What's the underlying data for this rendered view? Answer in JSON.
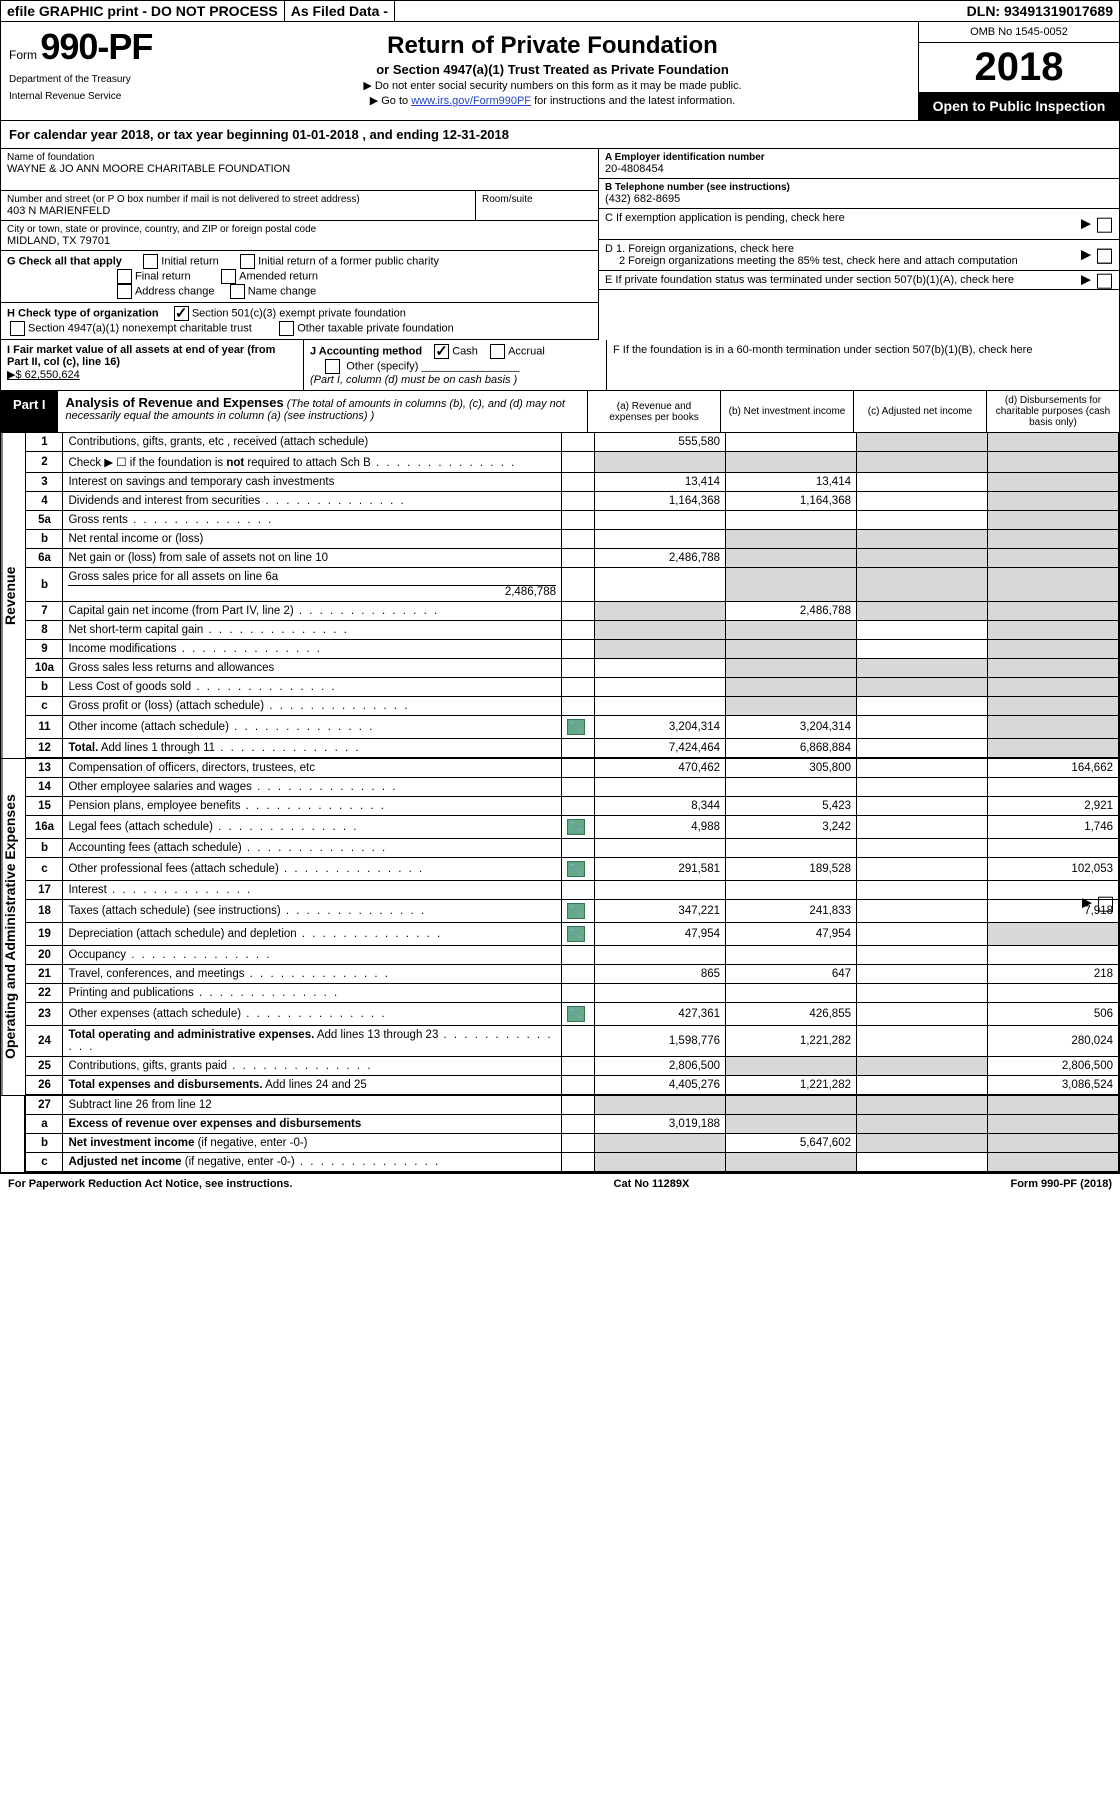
{
  "topbar": {
    "efile": "efile GRAPHIC print - DO NOT PROCESS",
    "asfiled": "As Filed Data -",
    "dln_label": "DLN:",
    "dln": "93491319017689"
  },
  "header": {
    "form_prefix": "Form",
    "form_num": "990-PF",
    "dept1": "Department of the Treasury",
    "dept2": "Internal Revenue Service",
    "title": "Return of Private Foundation",
    "subtitle": "or Section 4947(a)(1) Trust Treated as Private Foundation",
    "note1": "▶ Do not enter social security numbers on this form as it may be made public.",
    "note2_pre": "▶ Go to ",
    "note2_link": "www.irs.gov/Form990PF",
    "note2_post": " for instructions and the latest information.",
    "omb": "OMB No  1545-0052",
    "year": "2018",
    "open": "Open to Public Inspection"
  },
  "calyear": "For calendar year 2018, or tax year beginning 01-01-2018             , and ending 12-31-2018",
  "name_block": {
    "lab": "Name of foundation",
    "val": "WAYNE & JO ANN MOORE CHARITABLE FOUNDATION"
  },
  "addr_block": {
    "lab": "Number and street (or P O  box number if mail is not delivered to street address)",
    "val": "403 N MARIENFELD",
    "room_lab": "Room/suite"
  },
  "city_block": {
    "lab": "City or town, state or province, country, and ZIP or foreign postal code",
    "val": "MIDLAND, TX  79701"
  },
  "A": {
    "lab": "A Employer identification number",
    "val": "20-4808454"
  },
  "B": {
    "lab": "B Telephone number (see instructions)",
    "val": "(432) 682-8695"
  },
  "C": "C  If exemption application is pending, check here",
  "D1": "D 1. Foreign organizations, check here",
  "D2": "2  Foreign organizations meeting the 85% test, check here and attach computation",
  "E": "E  If private foundation status was terminated under section 507(b)(1)(A), check here",
  "F": "F  If the foundation is in a 60-month termination under section 507(b)(1)(B), check here",
  "G": {
    "lab": "G Check all that apply",
    "opts": [
      "Initial return",
      "Initial return of a former public charity",
      "Final return",
      "Amended return",
      "Address change",
      "Name change"
    ]
  },
  "H": {
    "lab": "H Check type of organization",
    "opt1": "Section 501(c)(3) exempt private foundation",
    "opt2": "Section 4947(a)(1) nonexempt charitable trust",
    "opt3": "Other taxable private foundation"
  },
  "I": {
    "lab": "I Fair market value of all assets at end of year (from Part II, col  (c), line 16)",
    "val": "▶$  62,550,624"
  },
  "J": {
    "lab": "J Accounting method",
    "cash": "Cash",
    "accrual": "Accrual",
    "other": "Other (specify)",
    "note": "(Part I, column (d) must be on cash basis )"
  },
  "part1": {
    "tag": "Part I",
    "title": "Analysis of Revenue and Expenses",
    "sub": "(The total of amounts in columns (b), (c), and (d) may not necessarily equal the amounts in column (a) (see instructions) )",
    "cols": {
      "a": "(a)   Revenue and expenses per books",
      "b": "(b)   Net investment income",
      "c": "(c)   Adjusted net income",
      "d": "(d)   Disbursements for charitable purposes (cash basis only)"
    }
  },
  "sidelabels": {
    "rev": "Revenue",
    "exp": "Operating and Administrative Expenses"
  },
  "rows": [
    {
      "n": "1",
      "lab": "Contributions, gifts, grants, etc , received (attach schedule)",
      "a": "555,580",
      "b": "",
      "c": "",
      "d": "",
      "icon": false,
      "shade_cd": true
    },
    {
      "n": "2",
      "lab": "Check ▶ ☐ if the foundation is <b>not</b> required to attach Sch  B",
      "a": "",
      "b": "",
      "c": "",
      "d": "",
      "shade_all": true,
      "dot": true
    },
    {
      "n": "3",
      "lab": "Interest on savings and temporary cash investments",
      "a": "13,414",
      "b": "13,414",
      "c": "",
      "d": "",
      "shade_d": true
    },
    {
      "n": "4",
      "lab": "Dividends and interest from securities",
      "a": "1,164,368",
      "b": "1,164,368",
      "c": "",
      "d": "",
      "dot": true,
      "shade_d": true
    },
    {
      "n": "5a",
      "lab": "Gross rents",
      "a": "",
      "b": "",
      "c": "",
      "d": "",
      "dot": true,
      "shade_d": true
    },
    {
      "n": "b",
      "lab": "Net rental income or (loss)",
      "a": "",
      "b": "",
      "c": "",
      "d": "",
      "shade_bcd": true,
      "under": true
    },
    {
      "n": "6a",
      "lab": "Net gain or (loss) from sale of assets not on line 10",
      "a": "2,486,788",
      "b": "",
      "c": "",
      "d": "",
      "shade_bcd": true
    },
    {
      "n": "b",
      "lab": "Gross sales price for all assets on line 6a",
      "a": "",
      "b": "",
      "c": "",
      "d": "",
      "sub": "2,486,788",
      "shade_bcd": true
    },
    {
      "n": "7",
      "lab": "Capital gain net income (from Part IV, line 2)",
      "a": "",
      "b": "2,486,788",
      "c": "",
      "d": "",
      "dot": true,
      "shade_a": true,
      "shade_cd": true
    },
    {
      "n": "8",
      "lab": "Net short-term capital gain",
      "a": "",
      "b": "",
      "c": "",
      "d": "",
      "dot": true,
      "shade_ab": true,
      "shade_d": true
    },
    {
      "n": "9",
      "lab": "Income modifications",
      "a": "",
      "b": "",
      "c": "",
      "d": "",
      "dot": true,
      "shade_ab": true,
      "shade_d": true
    },
    {
      "n": "10a",
      "lab": "Gross sales less returns and allowances",
      "a": "",
      "b": "",
      "c": "",
      "d": "",
      "shade_bcd": true,
      "under": true
    },
    {
      "n": "b",
      "lab": "Less  Cost of goods sold",
      "a": "",
      "b": "",
      "c": "",
      "d": "",
      "dot": true,
      "shade_bcd": true,
      "under": true
    },
    {
      "n": "c",
      "lab": "Gross profit or (loss) (attach schedule)",
      "a": "",
      "b": "",
      "c": "",
      "d": "",
      "dot": true,
      "shade_b": true,
      "shade_d": true
    },
    {
      "n": "11",
      "lab": "Other income (attach schedule)",
      "a": "3,204,314",
      "b": "3,204,314",
      "c": "",
      "d": "",
      "dot": true,
      "icon": true,
      "shade_d": true
    },
    {
      "n": "12",
      "lab": "<b>Total.</b> Add lines 1 through 11",
      "a": "7,424,464",
      "b": "6,868,884",
      "c": "",
      "d": "",
      "dot": true,
      "shade_d": true
    }
  ],
  "exp_rows": [
    {
      "n": "13",
      "lab": "Compensation of officers, directors, trustees, etc",
      "a": "470,462",
      "b": "305,800",
      "c": "",
      "d": "164,662"
    },
    {
      "n": "14",
      "lab": "Other employee salaries and wages",
      "a": "",
      "b": "",
      "c": "",
      "d": "",
      "dot": true
    },
    {
      "n": "15",
      "lab": "Pension plans, employee benefits",
      "a": "8,344",
      "b": "5,423",
      "c": "",
      "d": "2,921",
      "dot": true
    },
    {
      "n": "16a",
      "lab": "Legal fees (attach schedule)",
      "a": "4,988",
      "b": "3,242",
      "c": "",
      "d": "1,746",
      "dot": true,
      "icon": true
    },
    {
      "n": "b",
      "lab": "Accounting fees (attach schedule)",
      "a": "",
      "b": "",
      "c": "",
      "d": "",
      "dot": true
    },
    {
      "n": "c",
      "lab": "Other professional fees (attach schedule)",
      "a": "291,581",
      "b": "189,528",
      "c": "",
      "d": "102,053",
      "dot": true,
      "icon": true
    },
    {
      "n": "17",
      "lab": "Interest",
      "a": "",
      "b": "",
      "c": "",
      "d": "",
      "dot": true
    },
    {
      "n": "18",
      "lab": "Taxes (attach schedule) (see instructions)",
      "a": "347,221",
      "b": "241,833",
      "c": "",
      "d": "7,918",
      "dot": true,
      "icon": true
    },
    {
      "n": "19",
      "lab": "Depreciation (attach schedule) and depletion",
      "a": "47,954",
      "b": "47,954",
      "c": "",
      "d": "",
      "dot": true,
      "icon": true,
      "shade_d": true
    },
    {
      "n": "20",
      "lab": "Occupancy",
      "a": "",
      "b": "",
      "c": "",
      "d": "",
      "dot": true
    },
    {
      "n": "21",
      "lab": "Travel, conferences, and meetings",
      "a": "865",
      "b": "647",
      "c": "",
      "d": "218",
      "dot": true
    },
    {
      "n": "22",
      "lab": "Printing and publications",
      "a": "",
      "b": "",
      "c": "",
      "d": "",
      "dot": true
    },
    {
      "n": "23",
      "lab": "Other expenses (attach schedule)",
      "a": "427,361",
      "b": "426,855",
      "c": "",
      "d": "506",
      "dot": true,
      "icon": true
    },
    {
      "n": "24",
      "lab": "<b>Total operating and administrative expenses.</b> Add lines 13 through 23",
      "a": "1,598,776",
      "b": "1,221,282",
      "c": "",
      "d": "280,024",
      "dot": true
    },
    {
      "n": "25",
      "lab": "Contributions, gifts, grants paid",
      "a": "2,806,500",
      "b": "",
      "c": "",
      "d": "2,806,500",
      "dot": true,
      "shade_bc": true
    },
    {
      "n": "26",
      "lab": "<b>Total expenses and disbursements.</b> Add lines 24 and 25",
      "a": "4,405,276",
      "b": "1,221,282",
      "c": "",
      "d": "3,086,524"
    }
  ],
  "bot_rows": [
    {
      "n": "27",
      "lab": "Subtract line 26 from line 12",
      "a": "",
      "b": "",
      "c": "",
      "d": "",
      "shade_all": true
    },
    {
      "n": "a",
      "lab": "<b>Excess of revenue over expenses and disbursements</b>",
      "a": "3,019,188",
      "b": "",
      "c": "",
      "d": "",
      "shade_bcd": true
    },
    {
      "n": "b",
      "lab": "<b>Net investment income</b> (if negative, enter -0-)",
      "a": "",
      "b": "5,647,602",
      "c": "",
      "d": "",
      "shade_a": true,
      "shade_cd": true
    },
    {
      "n": "c",
      "lab": "<b>Adjusted net income</b> (if negative, enter -0-)",
      "a": "",
      "b": "",
      "c": "",
      "d": "",
      "dot": true,
      "shade_ab": true,
      "shade_d": true
    }
  ],
  "footer": {
    "left": "For Paperwork Reduction Act Notice, see instructions.",
    "mid": "Cat  No  11289X",
    "right": "Form 990-PF (2018)"
  }
}
